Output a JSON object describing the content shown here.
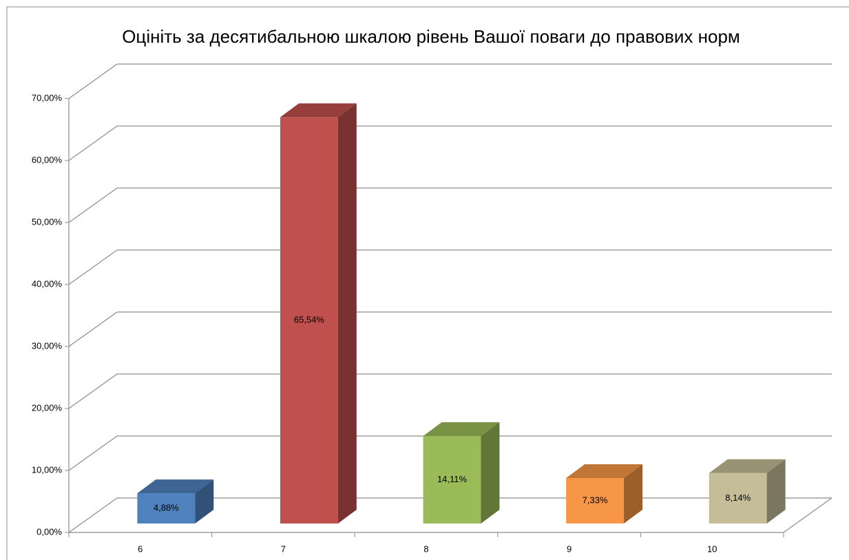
{
  "chart_data": {
    "type": "bar3d",
    "title": "Оцініть за десятибальною шкалою рівень Вашої поваги до правових норм",
    "categories": [
      "6",
      "7",
      "8",
      "9",
      "10"
    ],
    "values": [
      4.88,
      65.54,
      14.11,
      7.33,
      8.14
    ],
    "value_labels": [
      "4,88%",
      "65,54%",
      "14,11%",
      "7,33%",
      "8,14%"
    ],
    "colors": [
      "#4f81bd",
      "#c0504d",
      "#9bbb59",
      "#f79646",
      "#c4bd97"
    ],
    "ylim": [
      0,
      70
    ],
    "yticks": [
      {
        "value": 0,
        "label": "0,00%"
      },
      {
        "value": 10,
        "label": "10,00%"
      },
      {
        "value": 20,
        "label": "20,00%"
      },
      {
        "value": 30,
        "label": "30,00%"
      },
      {
        "value": 40,
        "label": "40,00%"
      },
      {
        "value": 50,
        "label": "50,00%"
      },
      {
        "value": 60,
        "label": "60,00%"
      },
      {
        "value": 70,
        "label": "70,00%"
      }
    ],
    "grid": true
  }
}
